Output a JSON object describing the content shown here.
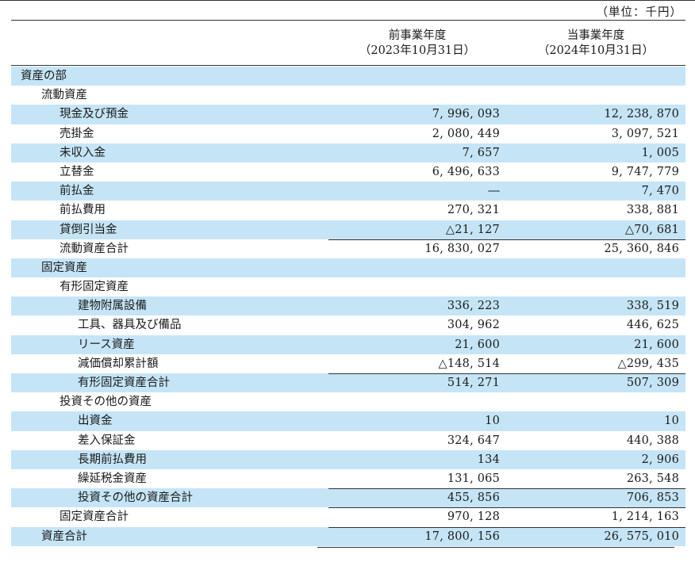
{
  "unit_label": "（単位：千円）",
  "columns": {
    "prev": {
      "label": "前事業年度",
      "date": "（2023年10月31日）"
    },
    "curr": {
      "label": "当事業年度",
      "date": "（2024年10月31日）"
    }
  },
  "colors": {
    "shade": "#c5e5f6"
  },
  "rows": [
    {
      "label": "資産の部",
      "level": 0,
      "prev": "",
      "curr": "",
      "shade": true,
      "total": false
    },
    {
      "label": "流動資産",
      "level": 1,
      "prev": "",
      "curr": "",
      "shade": false,
      "total": false
    },
    {
      "label": "現金及び預金",
      "level": 2,
      "prev": "7, 996, 093",
      "curr": "12, 238, 870",
      "shade": true,
      "total": false
    },
    {
      "label": "売掛金",
      "level": 2,
      "prev": "2, 080, 449",
      "curr": "3, 097, 521",
      "shade": false,
      "total": false
    },
    {
      "label": "未収入金",
      "level": 2,
      "prev": "7, 657",
      "curr": "1, 005",
      "shade": true,
      "total": false
    },
    {
      "label": "立替金",
      "level": 2,
      "prev": "6, 496, 633",
      "curr": "9, 747, 779",
      "shade": false,
      "total": false
    },
    {
      "label": "前払金",
      "level": 2,
      "prev": "―",
      "curr": "7, 470",
      "shade": true,
      "total": false
    },
    {
      "label": "前払費用",
      "level": 2,
      "prev": "270, 321",
      "curr": "338, 881",
      "shade": false,
      "total": false
    },
    {
      "label": "貸倒引当金",
      "level": 2,
      "prev": "△21, 127",
      "curr": "△70, 681",
      "shade": true,
      "total": false
    },
    {
      "label": "流動資産合計",
      "level": 2,
      "prev": "16, 830, 027",
      "curr": "25, 360, 846",
      "shade": false,
      "total": true
    },
    {
      "label": "固定資産",
      "level": 1,
      "prev": "",
      "curr": "",
      "shade": true,
      "total": false
    },
    {
      "label": "有形固定資産",
      "level": 2,
      "prev": "",
      "curr": "",
      "shade": false,
      "total": false
    },
    {
      "label": "建物附属設備",
      "level": 3,
      "prev": "336, 223",
      "curr": "338, 519",
      "shade": true,
      "total": false
    },
    {
      "label": "工具、器具及び備品",
      "level": 3,
      "prev": "304, 962",
      "curr": "446, 625",
      "shade": false,
      "total": false
    },
    {
      "label": "リース資産",
      "level": 3,
      "prev": "21, 600",
      "curr": "21, 600",
      "shade": true,
      "total": false
    },
    {
      "label": "減価償却累計額",
      "level": 3,
      "prev": "△148, 514",
      "curr": "△299, 435",
      "shade": false,
      "total": false
    },
    {
      "label": "有形固定資産合計",
      "level": 3,
      "prev": "514, 271",
      "curr": "507, 309",
      "shade": true,
      "total": true
    },
    {
      "label": "投資その他の資産",
      "level": 2,
      "prev": "",
      "curr": "",
      "shade": false,
      "total": false
    },
    {
      "label": "出資金",
      "level": 3,
      "prev": "10",
      "curr": "10",
      "shade": true,
      "total": false
    },
    {
      "label": "差入保証金",
      "level": 3,
      "prev": "324, 647",
      "curr": "440, 388",
      "shade": false,
      "total": false
    },
    {
      "label": "長期前払費用",
      "level": 3,
      "prev": "134",
      "curr": "2, 906",
      "shade": true,
      "total": false
    },
    {
      "label": "繰延税金資産",
      "level": 3,
      "prev": "131, 065",
      "curr": "263, 548",
      "shade": false,
      "total": false
    },
    {
      "label": "投資その他の資産合計",
      "level": 3,
      "prev": "455, 856",
      "curr": "706, 853",
      "shade": true,
      "total": true
    },
    {
      "label": "固定資産合計",
      "level": 2,
      "prev": "970, 128",
      "curr": "1, 214, 163",
      "shade": false,
      "total": true
    },
    {
      "label": "資産合計",
      "level": 1,
      "prev": "17, 800, 156",
      "curr": "26, 575, 010",
      "shade": true,
      "total": true
    }
  ]
}
